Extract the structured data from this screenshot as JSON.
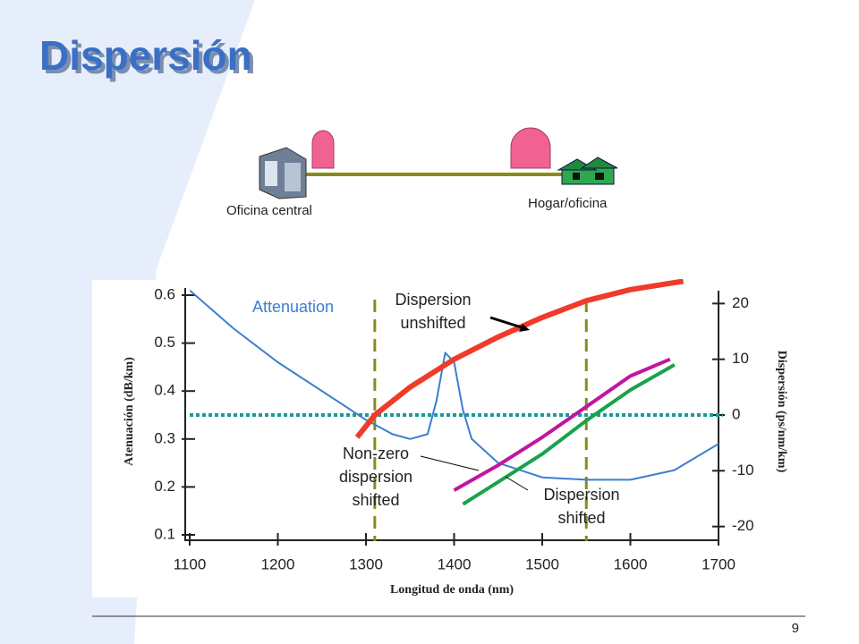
{
  "slide": {
    "title": "Dispersión",
    "left_site": "Oficina central",
    "right_site": "Hogar/oficina",
    "page_number": "9"
  },
  "chart_data": {
    "type": "line",
    "x_label": "Longitud de onda (nm)",
    "y_label": "Atenuación (dB/km)",
    "y2_label": "Dispersión (ps/nm/km)",
    "xlim": [
      1100,
      1700
    ],
    "xticks": [
      1100,
      1200,
      1300,
      1400,
      1500,
      1600,
      1700
    ],
    "ylim": [
      0.1,
      0.6
    ],
    "yticks": [
      0.1,
      0.2,
      0.3,
      0.4,
      0.5,
      0.6
    ],
    "y2lim": [
      -21.5,
      21.5
    ],
    "y2ticks": [
      -20,
      -10,
      0,
      10,
      20
    ],
    "vlines": [
      1310,
      1550
    ],
    "vline_color": "#8b8b1a",
    "hline_y2": 0,
    "hline_color": "#1a9a9a",
    "series": [
      {
        "name": "Attenuation",
        "color": "#3a7fcf",
        "axis": "y",
        "x": [
          1100,
          1150,
          1200,
          1250,
          1300,
          1330,
          1350,
          1370,
          1380,
          1390,
          1400,
          1410,
          1420,
          1450,
          1500,
          1550,
          1600,
          1650,
          1700
        ],
        "values": [
          0.61,
          0.53,
          0.46,
          0.4,
          0.34,
          0.31,
          0.3,
          0.31,
          0.38,
          0.48,
          0.46,
          0.36,
          0.3,
          0.25,
          0.22,
          0.215,
          0.215,
          0.235,
          0.29
        ]
      },
      {
        "name": "Dispersion unshifted",
        "color": "#f03a2a",
        "axis": "y2",
        "x": [
          1290,
          1310,
          1350,
          1400,
          1450,
          1500,
          1550,
          1600,
          1660
        ],
        "values": [
          -4,
          0,
          5,
          10,
          14,
          17.5,
          20.5,
          22.5,
          24
        ]
      },
      {
        "name": "Non-zero dispersion shifted",
        "color": "#c0169f",
        "axis": "y2",
        "x": [
          1400,
          1450,
          1500,
          1550,
          1600,
          1645
        ],
        "values": [
          -13.5,
          -9,
          -4,
          1.5,
          7,
          10
        ]
      },
      {
        "name": "Dispersion shifted",
        "color": "#17a34a",
        "axis": "y2",
        "x": [
          1410,
          1450,
          1500,
          1550,
          1600,
          1650
        ],
        "values": [
          -16,
          -12,
          -7,
          -1,
          4.5,
          9
        ]
      }
    ]
  }
}
